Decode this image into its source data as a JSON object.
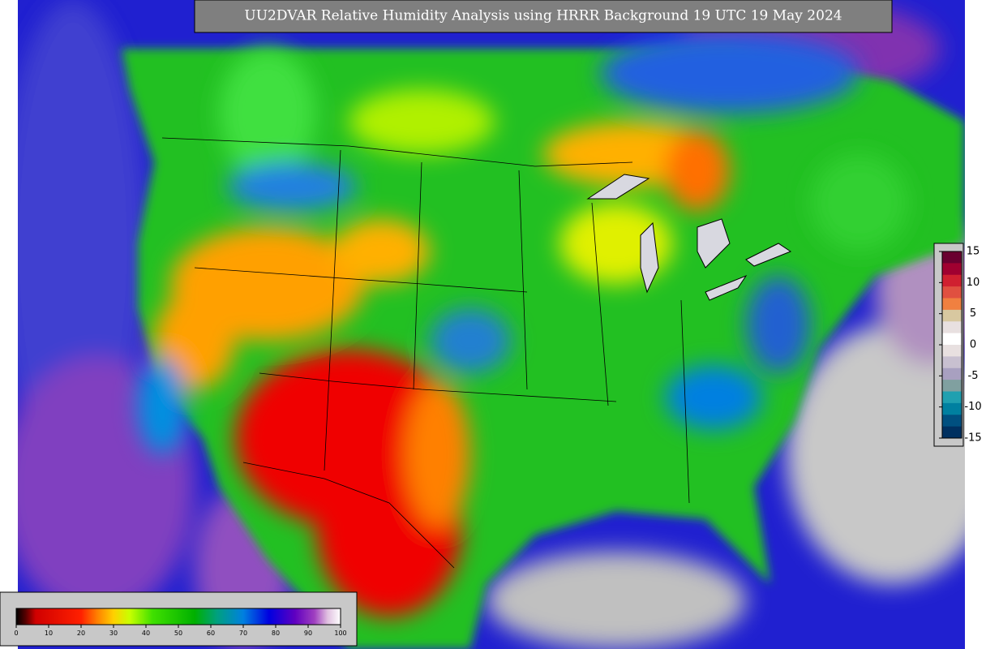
{
  "title": "UU2DVAR Relative Humidity Analysis using HRRR Background 19 UTC 19 May 2024",
  "humidity_colorbar": {
    "ticks": [
      0,
      10,
      20,
      30,
      40,
      50,
      60,
      70,
      80,
      90,
      100
    ]
  },
  "difference_colorbar": {
    "ticks": [
      15,
      10,
      5,
      0,
      -5,
      -10,
      -15
    ]
  }
}
